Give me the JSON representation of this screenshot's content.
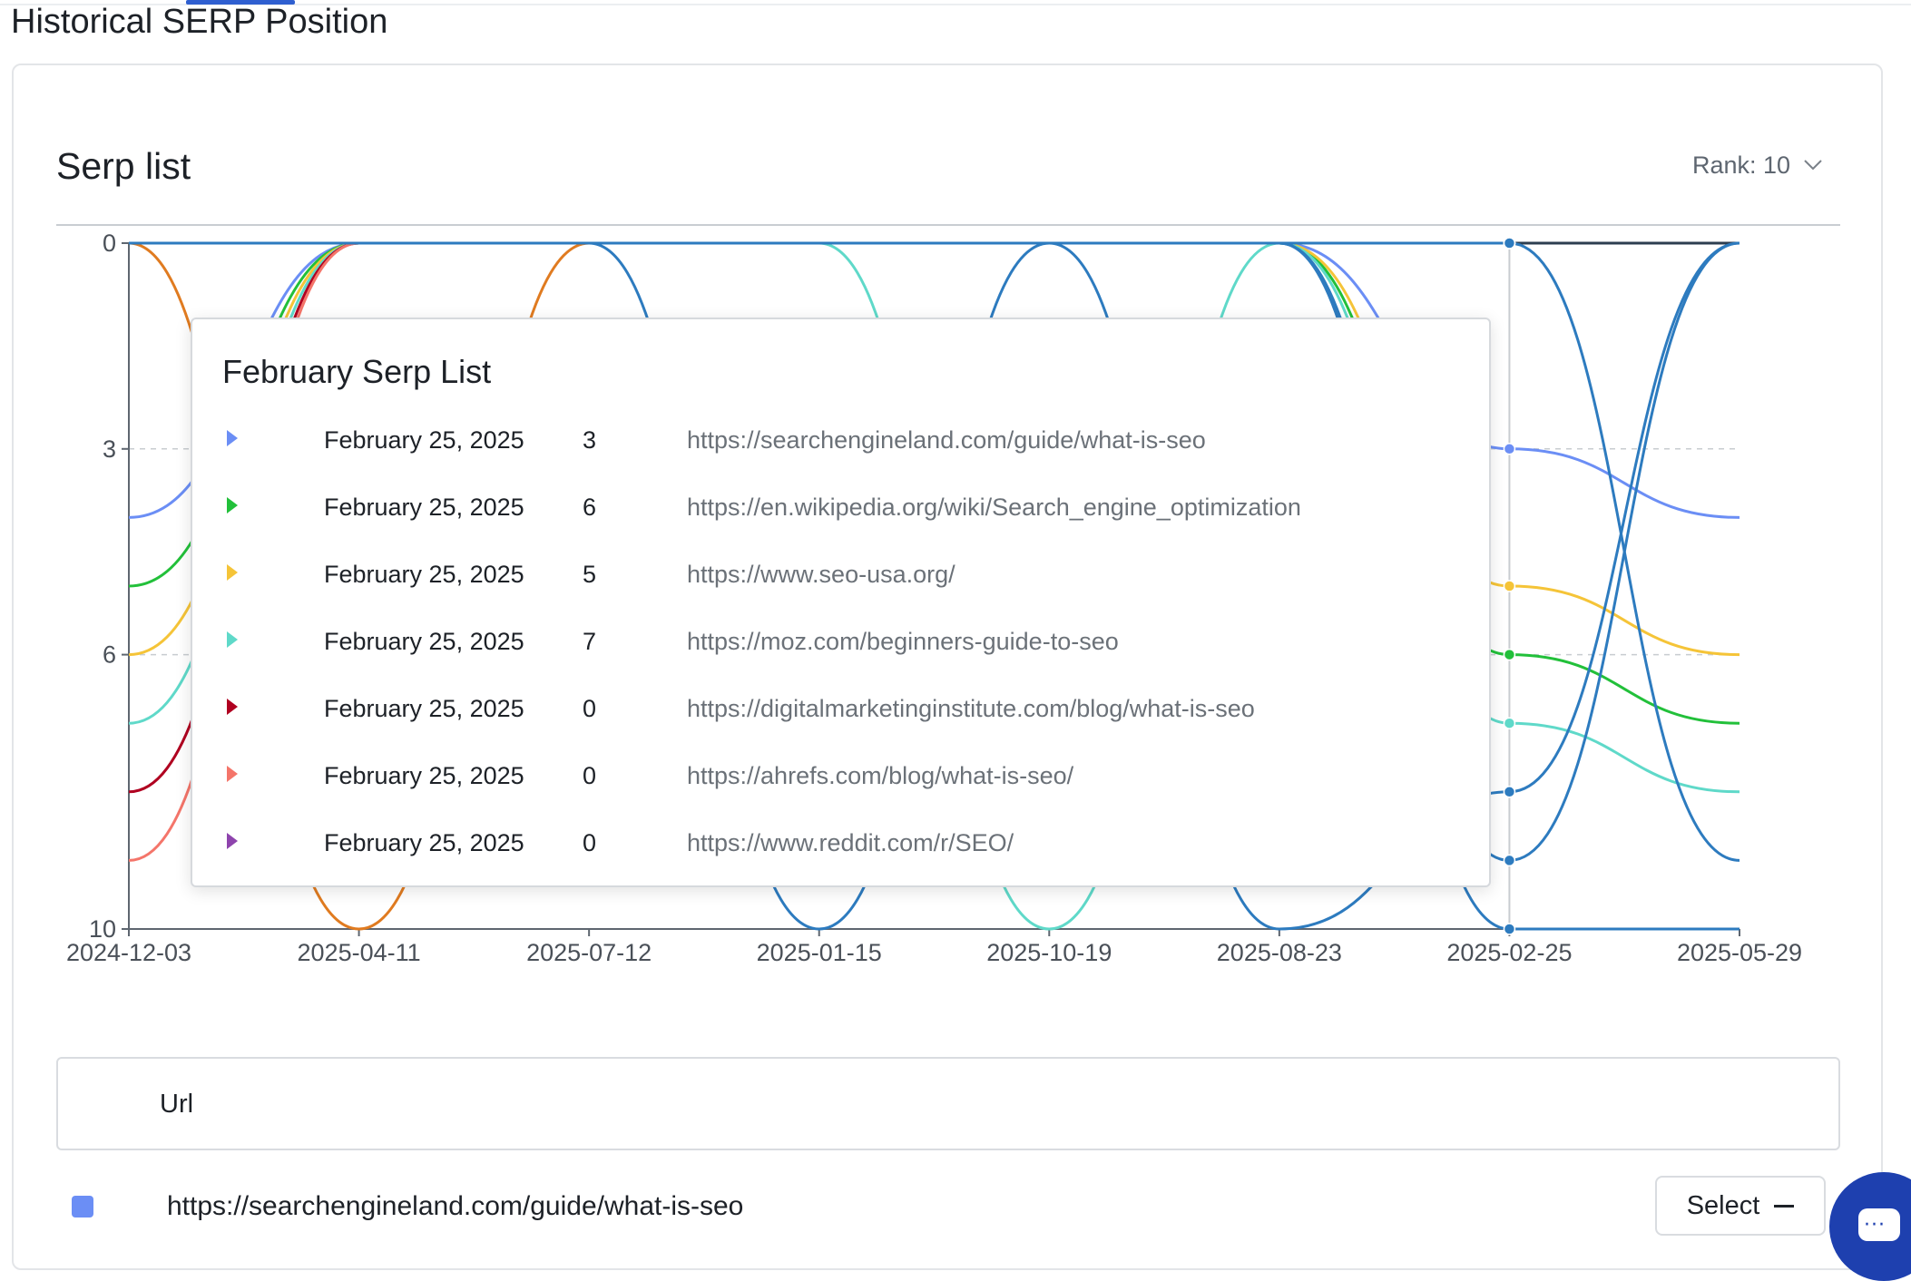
{
  "page": {
    "title": "Historical SERP Position"
  },
  "card": {
    "title": "Serp list",
    "rank_control": {
      "label": "Rank: 10",
      "icon": "chevron-down-icon"
    }
  },
  "chart_data": {
    "type": "line",
    "title": "",
    "xlabel": "",
    "ylabel": "",
    "x": [
      "2024-12-03",
      "2025-04-11",
      "2025-07-12",
      "2025-01-15",
      "2025-10-19",
      "2025-08-23",
      "2025-02-25",
      "2025-05-29"
    ],
    "y_ticks": [
      "0",
      "3",
      "6",
      "10"
    ],
    "ylim": [
      0,
      10
    ],
    "y_inverted": true,
    "grid": {
      "horizontal_dashed": [
        3,
        6
      ]
    },
    "hover_index": 6,
    "series": [
      {
        "color": "#6b8ef5",
        "values": [
          4,
          0,
          0,
          0,
          0,
          0,
          3,
          4
        ]
      },
      {
        "color": "#22c03a",
        "values": [
          5,
          0,
          0,
          0,
          0,
          0,
          6,
          7
        ]
      },
      {
        "color": "#f5c438",
        "values": [
          6,
          0,
          0,
          0,
          0,
          0,
          5,
          6
        ]
      },
      {
        "color": "#5fd9c9",
        "values": [
          7,
          0,
          0,
          0,
          10,
          0,
          7,
          8
        ]
      },
      {
        "color": "#b00020",
        "values": [
          8,
          0,
          0,
          0,
          0,
          0,
          0,
          0
        ]
      },
      {
        "color": "#f4756a",
        "values": [
          9,
          0,
          0,
          0,
          0,
          0,
          0,
          0
        ]
      },
      {
        "color": "#8e44ad",
        "values": [
          0,
          0,
          0,
          0,
          0,
          0,
          0,
          0
        ]
      },
      {
        "color": "#e07b20",
        "values": [
          0,
          10,
          0,
          0,
          0,
          0,
          0,
          0
        ]
      },
      {
        "color": "#2c3e50",
        "values": [
          0,
          0,
          0,
          0,
          0,
          0,
          0,
          0
        ]
      },
      {
        "color": "#2d7bbf",
        "values": [
          0,
          0,
          0,
          10,
          0,
          10,
          8,
          0
        ]
      },
      {
        "color": "#2d7bbf",
        "values": [
          0,
          0,
          0,
          0,
          0,
          0,
          9,
          0
        ]
      },
      {
        "color": "#2d7bbf",
        "values": [
          0,
          0,
          0,
          0,
          0,
          0,
          0,
          9
        ]
      },
      {
        "color": "#2d7bbf",
        "values": [
          0,
          0,
          0,
          0,
          0,
          0,
          10,
          10
        ]
      }
    ]
  },
  "tooltip": {
    "title": "February Serp List",
    "rows": [
      {
        "color": "#6b8ef5",
        "date": "February 25, 2025",
        "rank": "3",
        "url": "https://searchengineland.com/guide/what-is-seo"
      },
      {
        "color": "#22c03a",
        "date": "February 25, 2025",
        "rank": "6",
        "url": "https://en.wikipedia.org/wiki/Search_engine_optimization"
      },
      {
        "color": "#f5c438",
        "date": "February 25, 2025",
        "rank": "5",
        "url": "https://www.seo-usa.org/"
      },
      {
        "color": "#5fd9c9",
        "date": "February 25, 2025",
        "rank": "7",
        "url": "https://moz.com/beginners-guide-to-seo"
      },
      {
        "color": "#b00020",
        "date": "February 25, 2025",
        "rank": "0",
        "url": "https://digitalmarketinginstitute.com/blog/what-is-seo"
      },
      {
        "color": "#f4756a",
        "date": "February 25, 2025",
        "rank": "0",
        "url": "https://ahrefs.com/blog/what-is-seo/"
      },
      {
        "color": "#8e44ad",
        "date": "February 25, 2025",
        "rank": "0",
        "url": "https://www.reddit.com/r/SEO/"
      }
    ]
  },
  "table": {
    "header": "Url",
    "rows": [
      {
        "swatch_color": "#6b8ef5",
        "url": "https://searchengineland.com/guide/what-is-seo",
        "action_label": "Select"
      }
    ]
  },
  "chat": {
    "icon": "chat-bubble-icon"
  }
}
